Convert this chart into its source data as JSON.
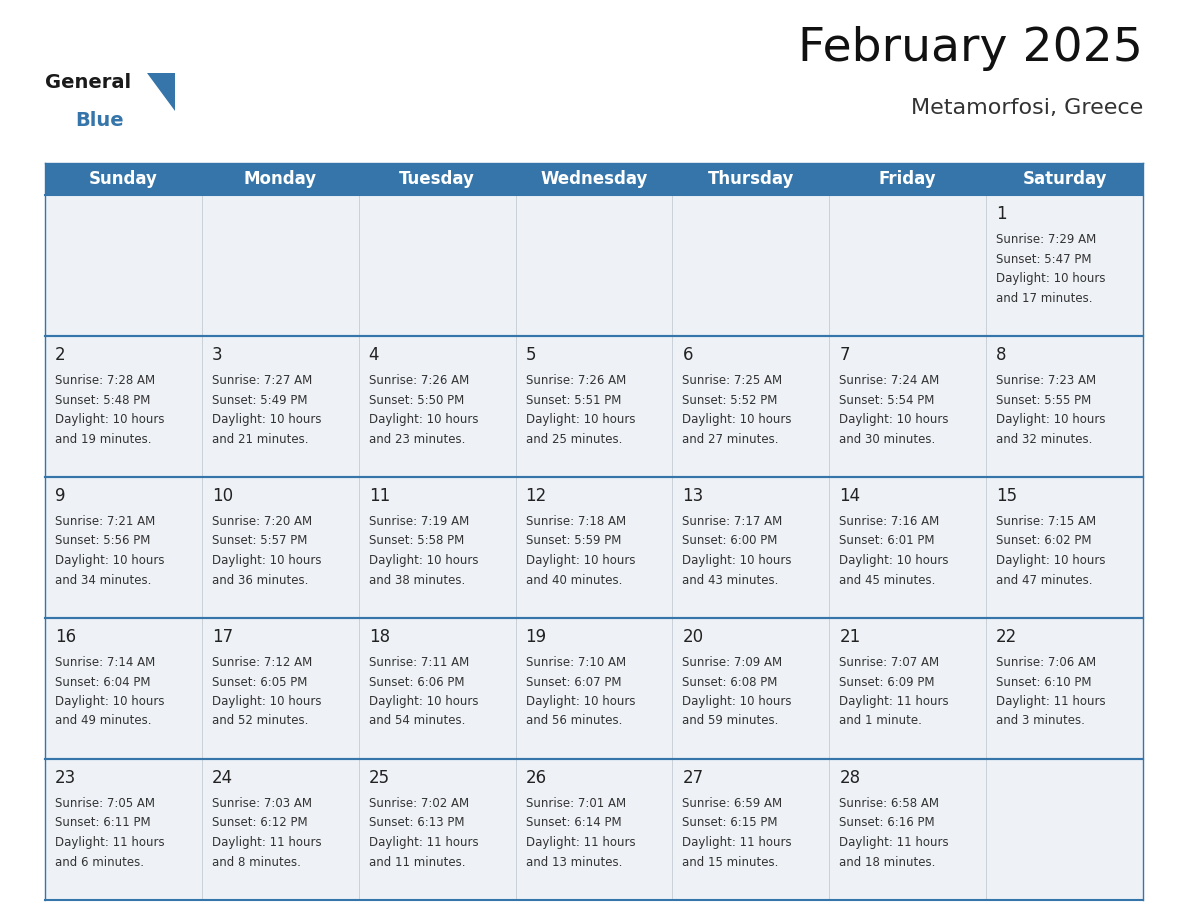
{
  "title": "February 2025",
  "subtitle": "Metamorfosi, Greece",
  "header_color": "#3575aa",
  "header_text_color": "#ffffff",
  "background_color": "#ffffff",
  "cell_bg": "#eef2f7",
  "cell_border_color": "#c8d0d8",
  "day_names": [
    "Sunday",
    "Monday",
    "Tuesday",
    "Wednesday",
    "Thursday",
    "Friday",
    "Saturday"
  ],
  "title_fontsize": 34,
  "subtitle_fontsize": 16,
  "header_fontsize": 12,
  "day_number_fontsize": 12,
  "info_fontsize": 8.5,
  "calendar": [
    [
      null,
      null,
      null,
      null,
      null,
      null,
      1
    ],
    [
      2,
      3,
      4,
      5,
      6,
      7,
      8
    ],
    [
      9,
      10,
      11,
      12,
      13,
      14,
      15
    ],
    [
      16,
      17,
      18,
      19,
      20,
      21,
      22
    ],
    [
      23,
      24,
      25,
      26,
      27,
      28,
      null
    ]
  ],
  "sun_data": {
    "1": {
      "sunrise": "7:29 AM",
      "sunset": "5:47 PM",
      "daylight_l1": "Daylight: 10 hours",
      "daylight_l2": "and 17 minutes."
    },
    "2": {
      "sunrise": "7:28 AM",
      "sunset": "5:48 PM",
      "daylight_l1": "Daylight: 10 hours",
      "daylight_l2": "and 19 minutes."
    },
    "3": {
      "sunrise": "7:27 AM",
      "sunset": "5:49 PM",
      "daylight_l1": "Daylight: 10 hours",
      "daylight_l2": "and 21 minutes."
    },
    "4": {
      "sunrise": "7:26 AM",
      "sunset": "5:50 PM",
      "daylight_l1": "Daylight: 10 hours",
      "daylight_l2": "and 23 minutes."
    },
    "5": {
      "sunrise": "7:26 AM",
      "sunset": "5:51 PM",
      "daylight_l1": "Daylight: 10 hours",
      "daylight_l2": "and 25 minutes."
    },
    "6": {
      "sunrise": "7:25 AM",
      "sunset": "5:52 PM",
      "daylight_l1": "Daylight: 10 hours",
      "daylight_l2": "and 27 minutes."
    },
    "7": {
      "sunrise": "7:24 AM",
      "sunset": "5:54 PM",
      "daylight_l1": "Daylight: 10 hours",
      "daylight_l2": "and 30 minutes."
    },
    "8": {
      "sunrise": "7:23 AM",
      "sunset": "5:55 PM",
      "daylight_l1": "Daylight: 10 hours",
      "daylight_l2": "and 32 minutes."
    },
    "9": {
      "sunrise": "7:21 AM",
      "sunset": "5:56 PM",
      "daylight_l1": "Daylight: 10 hours",
      "daylight_l2": "and 34 minutes."
    },
    "10": {
      "sunrise": "7:20 AM",
      "sunset": "5:57 PM",
      "daylight_l1": "Daylight: 10 hours",
      "daylight_l2": "and 36 minutes."
    },
    "11": {
      "sunrise": "7:19 AM",
      "sunset": "5:58 PM",
      "daylight_l1": "Daylight: 10 hours",
      "daylight_l2": "and 38 minutes."
    },
    "12": {
      "sunrise": "7:18 AM",
      "sunset": "5:59 PM",
      "daylight_l1": "Daylight: 10 hours",
      "daylight_l2": "and 40 minutes."
    },
    "13": {
      "sunrise": "7:17 AM",
      "sunset": "6:00 PM",
      "daylight_l1": "Daylight: 10 hours",
      "daylight_l2": "and 43 minutes."
    },
    "14": {
      "sunrise": "7:16 AM",
      "sunset": "6:01 PM",
      "daylight_l1": "Daylight: 10 hours",
      "daylight_l2": "and 45 minutes."
    },
    "15": {
      "sunrise": "7:15 AM",
      "sunset": "6:02 PM",
      "daylight_l1": "Daylight: 10 hours",
      "daylight_l2": "and 47 minutes."
    },
    "16": {
      "sunrise": "7:14 AM",
      "sunset": "6:04 PM",
      "daylight_l1": "Daylight: 10 hours",
      "daylight_l2": "and 49 minutes."
    },
    "17": {
      "sunrise": "7:12 AM",
      "sunset": "6:05 PM",
      "daylight_l1": "Daylight: 10 hours",
      "daylight_l2": "and 52 minutes."
    },
    "18": {
      "sunrise": "7:11 AM",
      "sunset": "6:06 PM",
      "daylight_l1": "Daylight: 10 hours",
      "daylight_l2": "and 54 minutes."
    },
    "19": {
      "sunrise": "7:10 AM",
      "sunset": "6:07 PM",
      "daylight_l1": "Daylight: 10 hours",
      "daylight_l2": "and 56 minutes."
    },
    "20": {
      "sunrise": "7:09 AM",
      "sunset": "6:08 PM",
      "daylight_l1": "Daylight: 10 hours",
      "daylight_l2": "and 59 minutes."
    },
    "21": {
      "sunrise": "7:07 AM",
      "sunset": "6:09 PM",
      "daylight_l1": "Daylight: 11 hours",
      "daylight_l2": "and 1 minute."
    },
    "22": {
      "sunrise": "7:06 AM",
      "sunset": "6:10 PM",
      "daylight_l1": "Daylight: 11 hours",
      "daylight_l2": "and 3 minutes."
    },
    "23": {
      "sunrise": "7:05 AM",
      "sunset": "6:11 PM",
      "daylight_l1": "Daylight: 11 hours",
      "daylight_l2": "and 6 minutes."
    },
    "24": {
      "sunrise": "7:03 AM",
      "sunset": "6:12 PM",
      "daylight_l1": "Daylight: 11 hours",
      "daylight_l2": "and 8 minutes."
    },
    "25": {
      "sunrise": "7:02 AM",
      "sunset": "6:13 PM",
      "daylight_l1": "Daylight: 11 hours",
      "daylight_l2": "and 11 minutes."
    },
    "26": {
      "sunrise": "7:01 AM",
      "sunset": "6:14 PM",
      "daylight_l1": "Daylight: 11 hours",
      "daylight_l2": "and 13 minutes."
    },
    "27": {
      "sunrise": "6:59 AM",
      "sunset": "6:15 PM",
      "daylight_l1": "Daylight: 11 hours",
      "daylight_l2": "and 15 minutes."
    },
    "28": {
      "sunrise": "6:58 AM",
      "sunset": "6:16 PM",
      "daylight_l1": "Daylight: 11 hours",
      "daylight_l2": "and 18 minutes."
    }
  }
}
